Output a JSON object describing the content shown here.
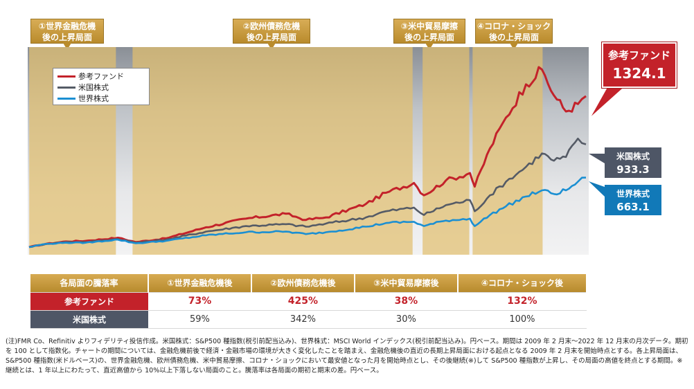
{
  "phase_labels": [
    {
      "line1": "①世界金融危機",
      "line2": "後の上昇局面"
    },
    {
      "line1": "②欧州債務危機",
      "line2": "後の上昇局面"
    },
    {
      "line1": "③米中貿易摩擦",
      "line2": "後の上昇局面"
    },
    {
      "line1": "④コロナ・ショック",
      "line2": "後の上昇局面"
    }
  ],
  "legend": [
    {
      "label": "参考ファンド",
      "color": "#c3222a"
    },
    {
      "label": "米国株式",
      "color": "#555b66"
    },
    {
      "label": "世界株式",
      "color": "#1b8fd2"
    }
  ],
  "callouts": {
    "fund": {
      "name": "参考ファンド",
      "value": "1324.1"
    },
    "us": {
      "name": "米国株式",
      "value": "933.3"
    },
    "world": {
      "name": "世界株式",
      "value": "663.1"
    }
  },
  "chart_data": {
    "type": "line",
    "x_start": "2009-02",
    "x_end": "2022-12",
    "phases": [
      {
        "name": "①世界金融危機後の上昇局面",
        "start": "2009-02",
        "end": "2011-04"
      },
      {
        "name": "②欧州債務危機後の上昇局面",
        "start": "2011-09",
        "end": "2018-09"
      },
      {
        "name": "③米中貿易摩擦後の上昇局面",
        "start": "2018-12",
        "end": "2020-02"
      },
      {
        "name": "④コロナ・ショック後の上昇局面",
        "start": "2020-03",
        "end": "2021-12"
      }
    ],
    "series": [
      {
        "name": "参考ファンド",
        "color": "#c3222a",
        "points": [
          [
            2009.08,
            100
          ],
          [
            2009.5,
            125
          ],
          [
            2010.0,
            145
          ],
          [
            2010.5,
            150
          ],
          [
            2011.3,
            175
          ],
          [
            2011.75,
            140
          ],
          [
            2012.5,
            170
          ],
          [
            2013.5,
            260
          ],
          [
            2014.5,
            330
          ],
          [
            2015.5,
            370
          ],
          [
            2016.0,
            320
          ],
          [
            2016.5,
            340
          ],
          [
            2017.5,
            450
          ],
          [
            2018.0,
            540
          ],
          [
            2018.7,
            620
          ],
          [
            2018.95,
            520
          ],
          [
            2019.5,
            640
          ],
          [
            2020.1,
            700
          ],
          [
            2020.22,
            590
          ],
          [
            2020.6,
            900
          ],
          [
            2021.0,
            1150
          ],
          [
            2021.5,
            1420
          ],
          [
            2021.9,
            1540
          ],
          [
            2022.2,
            1330
          ],
          [
            2022.5,
            1200
          ],
          [
            2022.8,
            1260
          ],
          [
            2023.0,
            1324.1
          ]
        ]
      },
      {
        "name": "米国株式",
        "color": "#555b66",
        "points": [
          [
            2009.08,
            100
          ],
          [
            2009.5,
            125
          ],
          [
            2010.0,
            140
          ],
          [
            2010.5,
            140
          ],
          [
            2011.3,
            165
          ],
          [
            2011.75,
            135
          ],
          [
            2012.5,
            160
          ],
          [
            2013.5,
            225
          ],
          [
            2014.5,
            270
          ],
          [
            2015.5,
            285
          ],
          [
            2016.0,
            265
          ],
          [
            2016.5,
            290
          ],
          [
            2017.5,
            340
          ],
          [
            2018.0,
            390
          ],
          [
            2018.7,
            420
          ],
          [
            2018.95,
            360
          ],
          [
            2019.5,
            440
          ],
          [
            2020.1,
            480
          ],
          [
            2020.22,
            390
          ],
          [
            2020.6,
            520
          ],
          [
            2021.0,
            630
          ],
          [
            2021.5,
            750
          ],
          [
            2021.9,
            860
          ],
          [
            2022.2,
            800
          ],
          [
            2022.5,
            830
          ],
          [
            2022.8,
            980
          ],
          [
            2023.0,
            933.3
          ]
        ]
      },
      {
        "name": "世界株式",
        "color": "#1b8fd2",
        "points": [
          [
            2009.08,
            100
          ],
          [
            2009.5,
            125
          ],
          [
            2010.0,
            135
          ],
          [
            2010.5,
            135
          ],
          [
            2011.3,
            160
          ],
          [
            2011.75,
            130
          ],
          [
            2012.5,
            150
          ],
          [
            2013.5,
            195
          ],
          [
            2014.5,
            220
          ],
          [
            2015.5,
            225
          ],
          [
            2016.0,
            205
          ],
          [
            2016.5,
            220
          ],
          [
            2017.5,
            265
          ],
          [
            2018.0,
            295
          ],
          [
            2018.7,
            305
          ],
          [
            2018.95,
            270
          ],
          [
            2019.5,
            315
          ],
          [
            2020.1,
            330
          ],
          [
            2020.22,
            270
          ],
          [
            2020.6,
            360
          ],
          [
            2021.0,
            430
          ],
          [
            2021.5,
            510
          ],
          [
            2021.9,
            560
          ],
          [
            2022.2,
            530
          ],
          [
            2022.5,
            560
          ],
          [
            2022.8,
            630
          ],
          [
            2023.0,
            663.1
          ]
        ]
      }
    ],
    "ylim": [
      60,
      1700
    ],
    "xlim": [
      2009.08,
      2023.0
    ]
  },
  "table": {
    "header": [
      "各局面の騰落率",
      "①世界金融危機後",
      "②欧州債務危機後",
      "③米中貿易摩擦後",
      "④コロナ・ショック後"
    ],
    "rows": [
      {
        "label": "参考ファンド",
        "values": [
          "73%",
          "425%",
          "38%",
          "132%"
        ]
      },
      {
        "label": "米国株式",
        "values": [
          "59%",
          "342%",
          "30%",
          "100%"
        ]
      }
    ]
  },
  "note": "(注)FMR Co、Refinitiv よりフィデリティ投信作成。米国株式：S&P500 種指数(税引前配当込み)、世界株式：MSCI World インデックス(税引前配当込み)。円ベース。期間は 2009 年 2 月末〜2022 年 12 月末の月次データ。期初を 100 として指数化。チャートの期間については、金融危機前後で経済・金融市場の環境が大きく変化したことを踏まえ、金融危機後の直近の長期上昇局面における起点となる 2009 年 2 月末を開始時点とする。各上昇局面は、S&P500 種指数(米ドルベース)の、世界金融危機、欧州債務危機、米中貿易摩擦、コロナ・ショックにおいて最安値となった月を開始時点とし、その後継続(※)して S&P500 種指数が上昇し、その局面の高値を終点とする期間。※継続とは、1 年以上にわたって、直近高値から 10%以上下落しない局面のこと。騰落率は各局面の期初と期末の差。円ベース。"
}
